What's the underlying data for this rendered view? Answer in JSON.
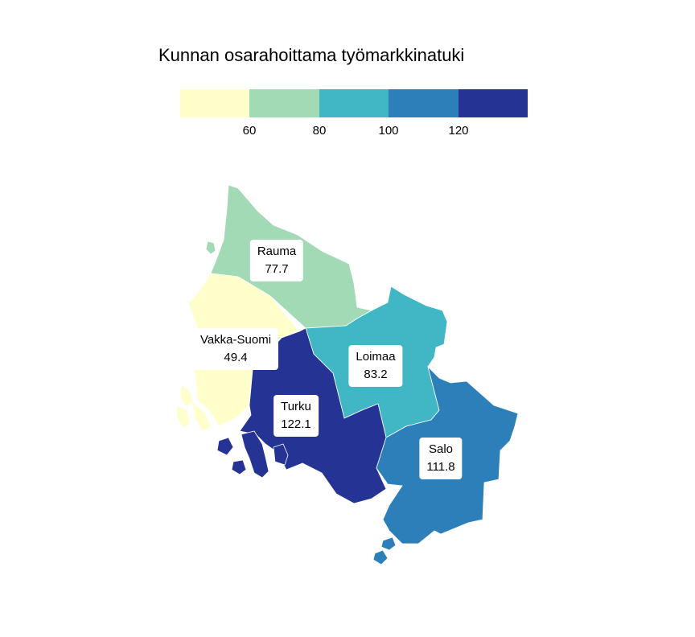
{
  "title": "Kunnan osarahoittama työmarkkinatuki",
  "legend": {
    "colors": [
      "#ffffcc",
      "#a1dab4",
      "#41b6c4",
      "#2c7fb8",
      "#253494"
    ],
    "ticks": [
      "60",
      "80",
      "100",
      "120"
    ]
  },
  "regions": [
    {
      "name": "Rauma",
      "value": "77.7",
      "color": "#a1dab4"
    },
    {
      "name": "Vakka-Suomi",
      "value": "49.4",
      "color": "#ffffcc"
    },
    {
      "name": "Loimaa",
      "value": "83.2",
      "color": "#41b6c4"
    },
    {
      "name": "Turku",
      "value": "122.1",
      "color": "#253494"
    },
    {
      "name": "Salo",
      "value": "111.8",
      "color": "#2c7fb8"
    }
  ]
}
